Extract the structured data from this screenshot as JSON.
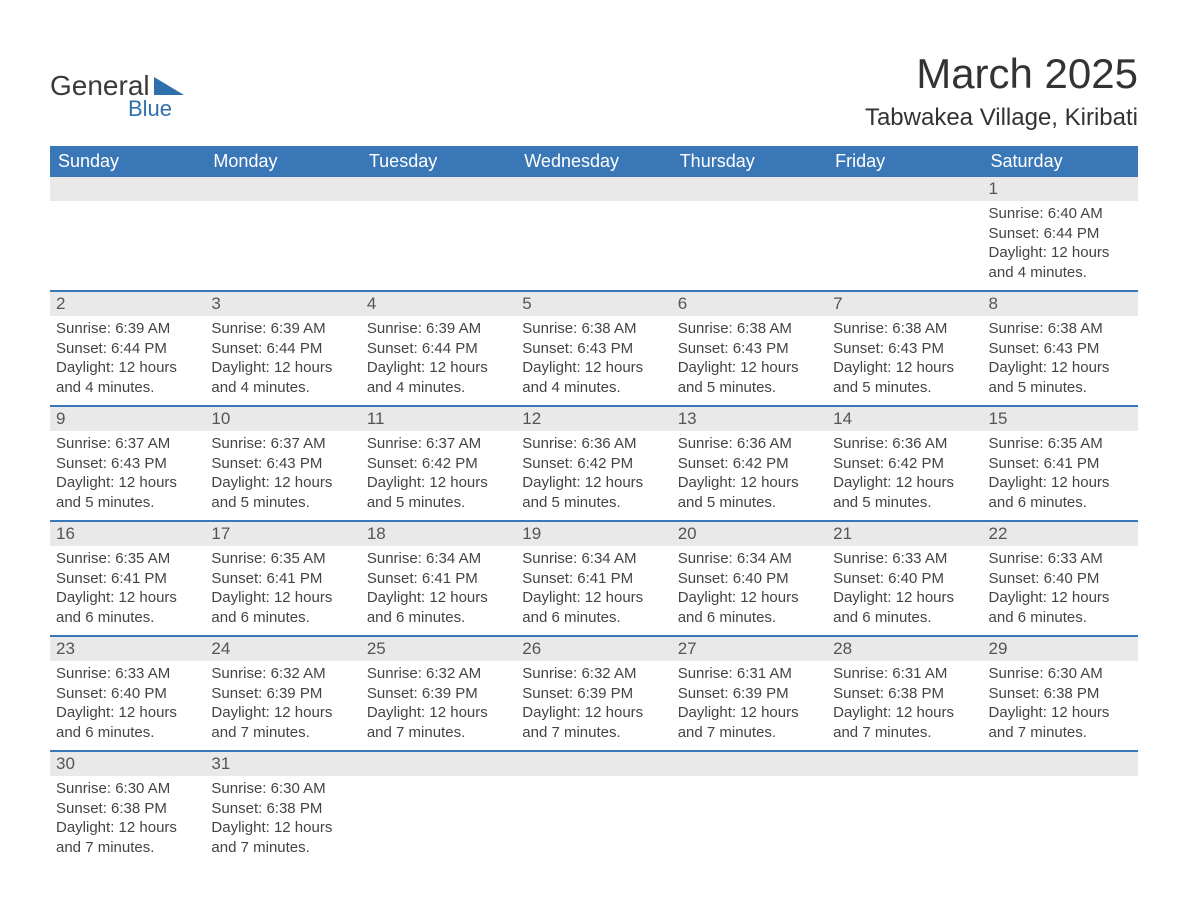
{
  "logo": {
    "text1": "General",
    "text2": "Blue",
    "icon_color": "#2f6fab"
  },
  "title": {
    "month": "March 2025",
    "location": "Tabwakea Village, Kiribati"
  },
  "colors": {
    "header_bg": "#3a77b7",
    "header_text": "#ffffff",
    "daynum_bg": "#e9e9e9",
    "week_divider": "#3a77b7",
    "body_text": "#444444",
    "page_bg": "#ffffff"
  },
  "fonts": {
    "month_title_pt": 42,
    "location_pt": 24,
    "dayheader_pt": 18,
    "daynum_pt": 17,
    "details_pt": 15
  },
  "days_of_week": [
    "Sunday",
    "Monday",
    "Tuesday",
    "Wednesday",
    "Thursday",
    "Friday",
    "Saturday"
  ],
  "weeks": [
    [
      null,
      null,
      null,
      null,
      null,
      null,
      {
        "n": "1",
        "sr": "Sunrise: 6:40 AM",
        "ss": "Sunset: 6:44 PM",
        "dl": "Daylight: 12 hours and 4 minutes."
      }
    ],
    [
      {
        "n": "2",
        "sr": "Sunrise: 6:39 AM",
        "ss": "Sunset: 6:44 PM",
        "dl": "Daylight: 12 hours and 4 minutes."
      },
      {
        "n": "3",
        "sr": "Sunrise: 6:39 AM",
        "ss": "Sunset: 6:44 PM",
        "dl": "Daylight: 12 hours and 4 minutes."
      },
      {
        "n": "4",
        "sr": "Sunrise: 6:39 AM",
        "ss": "Sunset: 6:44 PM",
        "dl": "Daylight: 12 hours and 4 minutes."
      },
      {
        "n": "5",
        "sr": "Sunrise: 6:38 AM",
        "ss": "Sunset: 6:43 PM",
        "dl": "Daylight: 12 hours and 4 minutes."
      },
      {
        "n": "6",
        "sr": "Sunrise: 6:38 AM",
        "ss": "Sunset: 6:43 PM",
        "dl": "Daylight: 12 hours and 5 minutes."
      },
      {
        "n": "7",
        "sr": "Sunrise: 6:38 AM",
        "ss": "Sunset: 6:43 PM",
        "dl": "Daylight: 12 hours and 5 minutes."
      },
      {
        "n": "8",
        "sr": "Sunrise: 6:38 AM",
        "ss": "Sunset: 6:43 PM",
        "dl": "Daylight: 12 hours and 5 minutes."
      }
    ],
    [
      {
        "n": "9",
        "sr": "Sunrise: 6:37 AM",
        "ss": "Sunset: 6:43 PM",
        "dl": "Daylight: 12 hours and 5 minutes."
      },
      {
        "n": "10",
        "sr": "Sunrise: 6:37 AM",
        "ss": "Sunset: 6:43 PM",
        "dl": "Daylight: 12 hours and 5 minutes."
      },
      {
        "n": "11",
        "sr": "Sunrise: 6:37 AM",
        "ss": "Sunset: 6:42 PM",
        "dl": "Daylight: 12 hours and 5 minutes."
      },
      {
        "n": "12",
        "sr": "Sunrise: 6:36 AM",
        "ss": "Sunset: 6:42 PM",
        "dl": "Daylight: 12 hours and 5 minutes."
      },
      {
        "n": "13",
        "sr": "Sunrise: 6:36 AM",
        "ss": "Sunset: 6:42 PM",
        "dl": "Daylight: 12 hours and 5 minutes."
      },
      {
        "n": "14",
        "sr": "Sunrise: 6:36 AM",
        "ss": "Sunset: 6:42 PM",
        "dl": "Daylight: 12 hours and 5 minutes."
      },
      {
        "n": "15",
        "sr": "Sunrise: 6:35 AM",
        "ss": "Sunset: 6:41 PM",
        "dl": "Daylight: 12 hours and 6 minutes."
      }
    ],
    [
      {
        "n": "16",
        "sr": "Sunrise: 6:35 AM",
        "ss": "Sunset: 6:41 PM",
        "dl": "Daylight: 12 hours and 6 minutes."
      },
      {
        "n": "17",
        "sr": "Sunrise: 6:35 AM",
        "ss": "Sunset: 6:41 PM",
        "dl": "Daylight: 12 hours and 6 minutes."
      },
      {
        "n": "18",
        "sr": "Sunrise: 6:34 AM",
        "ss": "Sunset: 6:41 PM",
        "dl": "Daylight: 12 hours and 6 minutes."
      },
      {
        "n": "19",
        "sr": "Sunrise: 6:34 AM",
        "ss": "Sunset: 6:41 PM",
        "dl": "Daylight: 12 hours and 6 minutes."
      },
      {
        "n": "20",
        "sr": "Sunrise: 6:34 AM",
        "ss": "Sunset: 6:40 PM",
        "dl": "Daylight: 12 hours and 6 minutes."
      },
      {
        "n": "21",
        "sr": "Sunrise: 6:33 AM",
        "ss": "Sunset: 6:40 PM",
        "dl": "Daylight: 12 hours and 6 minutes."
      },
      {
        "n": "22",
        "sr": "Sunrise: 6:33 AM",
        "ss": "Sunset: 6:40 PM",
        "dl": "Daylight: 12 hours and 6 minutes."
      }
    ],
    [
      {
        "n": "23",
        "sr": "Sunrise: 6:33 AM",
        "ss": "Sunset: 6:40 PM",
        "dl": "Daylight: 12 hours and 6 minutes."
      },
      {
        "n": "24",
        "sr": "Sunrise: 6:32 AM",
        "ss": "Sunset: 6:39 PM",
        "dl": "Daylight: 12 hours and 7 minutes."
      },
      {
        "n": "25",
        "sr": "Sunrise: 6:32 AM",
        "ss": "Sunset: 6:39 PM",
        "dl": "Daylight: 12 hours and 7 minutes."
      },
      {
        "n": "26",
        "sr": "Sunrise: 6:32 AM",
        "ss": "Sunset: 6:39 PM",
        "dl": "Daylight: 12 hours and 7 minutes."
      },
      {
        "n": "27",
        "sr": "Sunrise: 6:31 AM",
        "ss": "Sunset: 6:39 PM",
        "dl": "Daylight: 12 hours and 7 minutes."
      },
      {
        "n": "28",
        "sr": "Sunrise: 6:31 AM",
        "ss": "Sunset: 6:38 PM",
        "dl": "Daylight: 12 hours and 7 minutes."
      },
      {
        "n": "29",
        "sr": "Sunrise: 6:30 AM",
        "ss": "Sunset: 6:38 PM",
        "dl": "Daylight: 12 hours and 7 minutes."
      }
    ],
    [
      {
        "n": "30",
        "sr": "Sunrise: 6:30 AM",
        "ss": "Sunset: 6:38 PM",
        "dl": "Daylight: 12 hours and 7 minutes."
      },
      {
        "n": "31",
        "sr": "Sunrise: 6:30 AM",
        "ss": "Sunset: 6:38 PM",
        "dl": "Daylight: 12 hours and 7 minutes."
      },
      null,
      null,
      null,
      null,
      null
    ]
  ]
}
